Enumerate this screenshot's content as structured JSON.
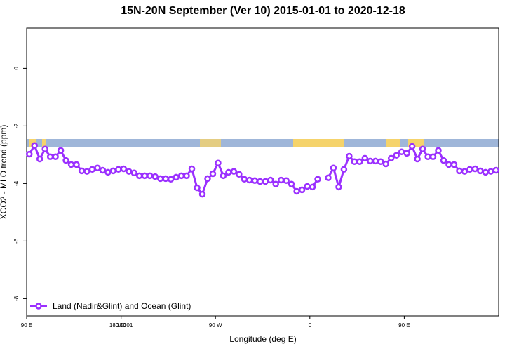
{
  "chart_data": {
    "type": "line",
    "title": "15N-20N September (Ver 10)   2015-01-01 to 2020-12-18",
    "xlabel": "Longitude (deg E)",
    "ylabel": "XCO2 - MLO trend (ppm)",
    "xlim": [
      90,
      540
    ],
    "ylim": [
      -8.6,
      1.4
    ],
    "xticks": [
      {
        "value": 90,
        "label": "90 E"
      },
      180,
      {
        "value": 270,
        "label": "90 W"
      },
      {
        "value": 360,
        "label": "0"
      },
      {
        "value": 450,
        "label": "90 E"
      },
      180.0001
    ],
    "yticks": [
      0,
      -2,
      -4,
      -6,
      -8
    ],
    "legend": "bottom-left",
    "x": [
      92.5,
      97.5,
      102.5,
      107.5,
      112.5,
      117.5,
      122.5,
      127.5,
      132.5,
      137.5,
      142.5,
      147.5,
      152.5,
      157.5,
      162.5,
      167.5,
      172.5,
      177.5,
      182.5,
      187.5,
      192.5,
      197.5,
      202.5,
      207.5,
      212.5,
      217.5,
      222.5,
      227.5,
      232.5,
      237.5,
      242.5,
      247.5,
      252.5,
      257.5,
      262.5,
      267.5,
      272.5,
      277.5,
      282.5,
      287.5,
      292.5,
      297.5,
      302.5,
      307.5,
      312.5,
      317.5,
      322.5,
      327.5,
      332.5,
      337.5,
      342.5,
      347.5,
      352.5,
      357.5,
      362.5,
      367.5,
      372.5,
      377.5,
      382.5,
      387.5,
      392.5,
      397.5,
      402.5,
      407.5,
      412.5,
      417.5,
      422.5,
      427.5,
      432.5,
      437.5,
      442.5,
      447.5,
      452.5,
      457.5,
      462.5,
      467.5,
      472.5,
      477.5,
      482.5,
      487.5,
      492.5,
      497.5,
      502.5,
      507.5,
      512.5,
      517.5,
      522.5,
      527.5,
      532.5,
      537.5
    ],
    "series": [
      {
        "name": "Land (Nadir&Glint) and Ocean (Glint)",
        "color": "#9b30ff",
        "values": [
          -2.98,
          -2.68,
          -3.15,
          -2.8,
          -3.07,
          -3.07,
          -2.85,
          -3.2,
          -3.34,
          -3.34,
          -3.56,
          -3.58,
          -3.51,
          -3.46,
          -3.54,
          -3.61,
          -3.56,
          -3.51,
          -3.49,
          -3.58,
          -3.63,
          -3.73,
          -3.73,
          -3.73,
          -3.76,
          -3.83,
          -3.83,
          -3.85,
          -3.78,
          -3.73,
          -3.73,
          -3.49,
          -4.15,
          -4.37,
          -3.83,
          -3.66,
          -3.29,
          -3.73,
          -3.61,
          -3.58,
          -3.68,
          -3.85,
          -3.88,
          -3.9,
          -3.93,
          -3.93,
          -3.88,
          -4.02,
          -3.88,
          -3.9,
          -4.02,
          -4.27,
          -4.22,
          -4.1,
          -4.12,
          -3.85,
          null,
          -3.8,
          -3.46,
          -4.12,
          -3.51,
          -3.05,
          -3.24,
          -3.24,
          -3.12,
          -3.22,
          -3.22,
          -3.24,
          -3.32,
          -3.12,
          -3.02,
          -2.9,
          -2.95,
          -2.71,
          -3.15,
          -2.8,
          -3.07,
          -3.07,
          -2.85,
          -3.2,
          -3.34,
          -3.34,
          -3.56,
          -3.58,
          -3.51,
          -3.49,
          -3.56,
          -3.61,
          -3.58,
          -3.54
        ]
      }
    ]
  }
}
